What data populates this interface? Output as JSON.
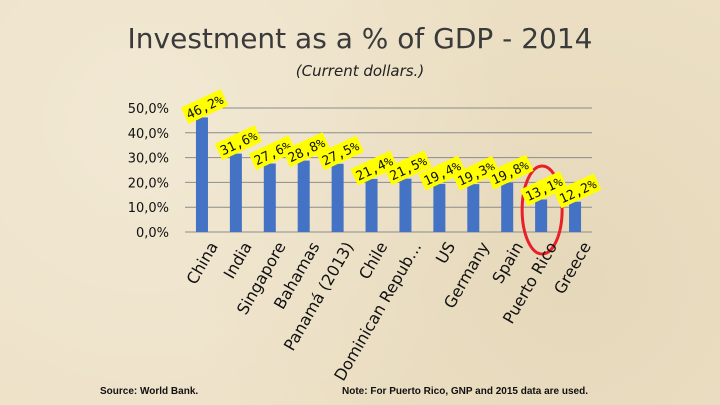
{
  "slide": {
    "title": "Investment as a % of GDP - 2014",
    "subtitle": "(Current dollars.)",
    "source": "Source: World Bank.",
    "note": "Note: For Puerto Rico, GNP and 2015 data are used."
  },
  "colors": {
    "bar": "#4472c4",
    "label_bg": "#ffff00",
    "highlight_circle": "#e8202a",
    "grid": "#8c8c8c",
    "background": "#ede1c6"
  },
  "chart_data": {
    "type": "bar",
    "categories": [
      "China",
      "India",
      "Singapore",
      "Bahamas",
      "Panamá (2013)",
      "Chile",
      "Dominican Repub…",
      "US",
      "Germany",
      "Spain",
      "Puerto Rico",
      "Greece"
    ],
    "values": [
      46.2,
      31.6,
      27.6,
      28.8,
      27.5,
      21.4,
      21.5,
      19.4,
      19.3,
      19.8,
      13.1,
      12.2
    ],
    "value_labels": [
      "46,2%",
      "31,6%",
      "27,6%",
      "28,8%",
      "27,5%",
      "21,4%",
      "21,5%",
      "19,4%",
      "19,3%",
      "19,8%",
      "13,1%",
      "12,2%"
    ],
    "y_ticks": [
      "0,0%",
      "10,0%",
      "20,0%",
      "30,0%",
      "40,0%",
      "50,0%"
    ],
    "ylim": [
      0,
      50
    ],
    "highlighted_category": "Puerto Rico",
    "grid": true,
    "xlabel": "",
    "ylabel": ""
  }
}
